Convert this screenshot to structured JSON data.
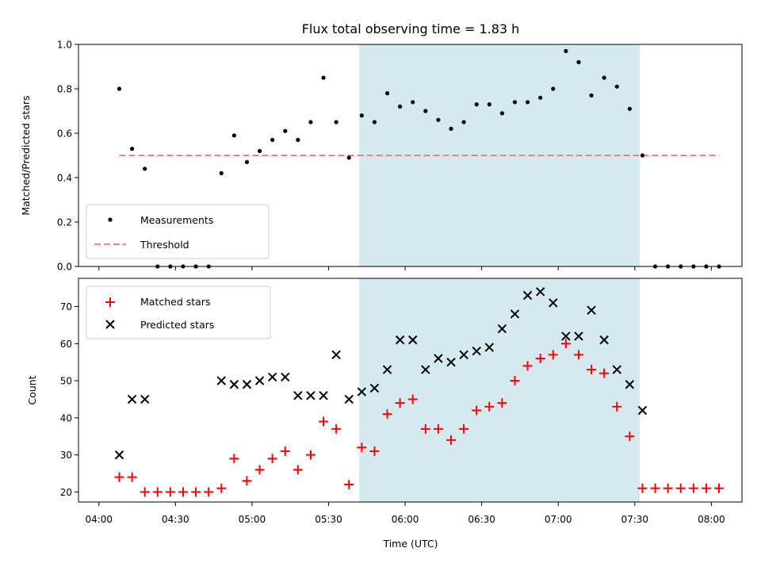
{
  "figure": {
    "title": "Flux total observing time = 1.83 h"
  },
  "chart_data": [
    {
      "type": "scatter",
      "ylabel": "Matched/Predicted stars",
      "ylim": [
        0,
        1.0
      ],
      "yticks": [
        0.0,
        0.2,
        0.4,
        0.6,
        0.8,
        1.0
      ],
      "ytick_labels": [
        "0.0",
        "0.2",
        "0.4",
        "0.6",
        "0.8",
        "1.0"
      ],
      "xlim": [
        "03:52",
        "08:12"
      ],
      "shaded_span": [
        "05:42",
        "07:32"
      ],
      "shade_color": "#d4eaf0",
      "legend": {
        "position": "lower-left",
        "entries": [
          "Measurements",
          "Threshold"
        ]
      },
      "series": [
        {
          "name": "Measurements",
          "marker": "dot",
          "color": "#000000",
          "x": [
            "04:08",
            "04:13",
            "04:18",
            "04:23",
            "04:28",
            "04:33",
            "04:38",
            "04:43",
            "04:48",
            "04:53",
            "04:58",
            "05:03",
            "05:08",
            "05:13",
            "05:18",
            "05:23",
            "05:28",
            "05:33",
            "05:38",
            "05:43",
            "05:48",
            "05:53",
            "05:58",
            "06:03",
            "06:08",
            "06:13",
            "06:18",
            "06:23",
            "06:28",
            "06:33",
            "06:38",
            "06:43",
            "06:48",
            "06:53",
            "06:58",
            "07:03",
            "07:08",
            "07:13",
            "07:18",
            "07:23",
            "07:28",
            "07:33",
            "07:38",
            "07:43",
            "07:48",
            "07:53",
            "07:58",
            "08:03"
          ],
          "y": [
            0.8,
            0.53,
            0.44,
            0.0,
            0.0,
            0.0,
            0.0,
            0.0,
            0.42,
            0.59,
            0.47,
            0.52,
            0.57,
            0.61,
            0.57,
            0.65,
            0.85,
            0.65,
            0.49,
            0.68,
            0.65,
            0.78,
            0.72,
            0.74,
            0.7,
            0.66,
            0.62,
            0.65,
            0.73,
            0.73,
            0.69,
            0.74,
            0.74,
            0.76,
            0.8,
            0.97,
            0.92,
            0.77,
            0.85,
            0.81,
            0.71,
            0.5,
            0.0,
            0.0,
            0.0,
            0.0,
            0.0,
            0.0
          ]
        },
        {
          "name": "Threshold",
          "line": "dashed",
          "color": "#f28080",
          "x": [
            "04:08",
            "08:03"
          ],
          "y": [
            0.5,
            0.5
          ]
        }
      ]
    },
    {
      "type": "scatter",
      "xlabel": "Time (UTC)",
      "ylabel": "Count",
      "ylim": [
        17.3,
        77.6
      ],
      "yticks": [
        20,
        30,
        40,
        50,
        60,
        70
      ],
      "ytick_labels": [
        "20",
        "30",
        "40",
        "50",
        "60",
        "70"
      ],
      "xlim": [
        "03:52",
        "08:12"
      ],
      "xticks": [
        "04:00",
        "04:30",
        "05:00",
        "05:30",
        "06:00",
        "06:30",
        "07:00",
        "07:30",
        "08:00"
      ],
      "xtick_labels": [
        "04:00",
        "04:30",
        "05:00",
        "05:30",
        "06:00",
        "06:30",
        "07:00",
        "07:30",
        "08:00"
      ],
      "shaded_span": [
        "05:42",
        "07:32"
      ],
      "shade_color": "#d4eaf0",
      "legend": {
        "position": "upper-left",
        "entries": [
          "Matched stars",
          "Predicted stars"
        ]
      },
      "series": [
        {
          "name": "Matched stars",
          "marker": "plus",
          "color": "#ff0000",
          "x": [
            "04:08",
            "04:13",
            "04:18",
            "04:23",
            "04:28",
            "04:33",
            "04:38",
            "04:43",
            "04:48",
            "04:53",
            "04:58",
            "05:03",
            "05:08",
            "05:13",
            "05:18",
            "05:23",
            "05:28",
            "05:33",
            "05:38",
            "05:43",
            "05:48",
            "05:53",
            "05:58",
            "06:03",
            "06:08",
            "06:13",
            "06:18",
            "06:23",
            "06:28",
            "06:33",
            "06:38",
            "06:43",
            "06:48",
            "06:53",
            "06:58",
            "07:03",
            "07:08",
            "07:13",
            "07:18",
            "07:23",
            "07:28",
            "07:33",
            "07:38",
            "07:43",
            "07:48",
            "07:53",
            "07:58",
            "08:03"
          ],
          "y": [
            24,
            24,
            20,
            20,
            20,
            20,
            20,
            20,
            21,
            29,
            23,
            26,
            29,
            31,
            26,
            30,
            39,
            37,
            22,
            32,
            31,
            41,
            44,
            45,
            37,
            37,
            34,
            37,
            42,
            43,
            44,
            50,
            54,
            56,
            57,
            60,
            57,
            53,
            52,
            43,
            35,
            21,
            21,
            21,
            21,
            21,
            21,
            21
          ]
        },
        {
          "name": "Predicted stars",
          "marker": "x",
          "color": "#000000",
          "x": [
            "04:08",
            "04:13",
            "04:18",
            "04:48",
            "04:53",
            "04:58",
            "05:03",
            "05:08",
            "05:13",
            "05:18",
            "05:23",
            "05:28",
            "05:33",
            "05:38",
            "05:43",
            "05:48",
            "05:53",
            "05:58",
            "06:03",
            "06:08",
            "06:13",
            "06:18",
            "06:23",
            "06:28",
            "06:33",
            "06:38",
            "06:43",
            "06:48",
            "06:53",
            "06:58",
            "07:03",
            "07:08",
            "07:13",
            "07:18",
            "07:23",
            "07:28",
            "07:33"
          ],
          "y": [
            30,
            45,
            45,
            50,
            49,
            49,
            50,
            51,
            51,
            46,
            46,
            46,
            57,
            45,
            47,
            48,
            53,
            61,
            61,
            53,
            56,
            55,
            57,
            58,
            59,
            64,
            68,
            73,
            74,
            71,
            62,
            62,
            69,
            61,
            53,
            49,
            42
          ]
        }
      ]
    }
  ]
}
